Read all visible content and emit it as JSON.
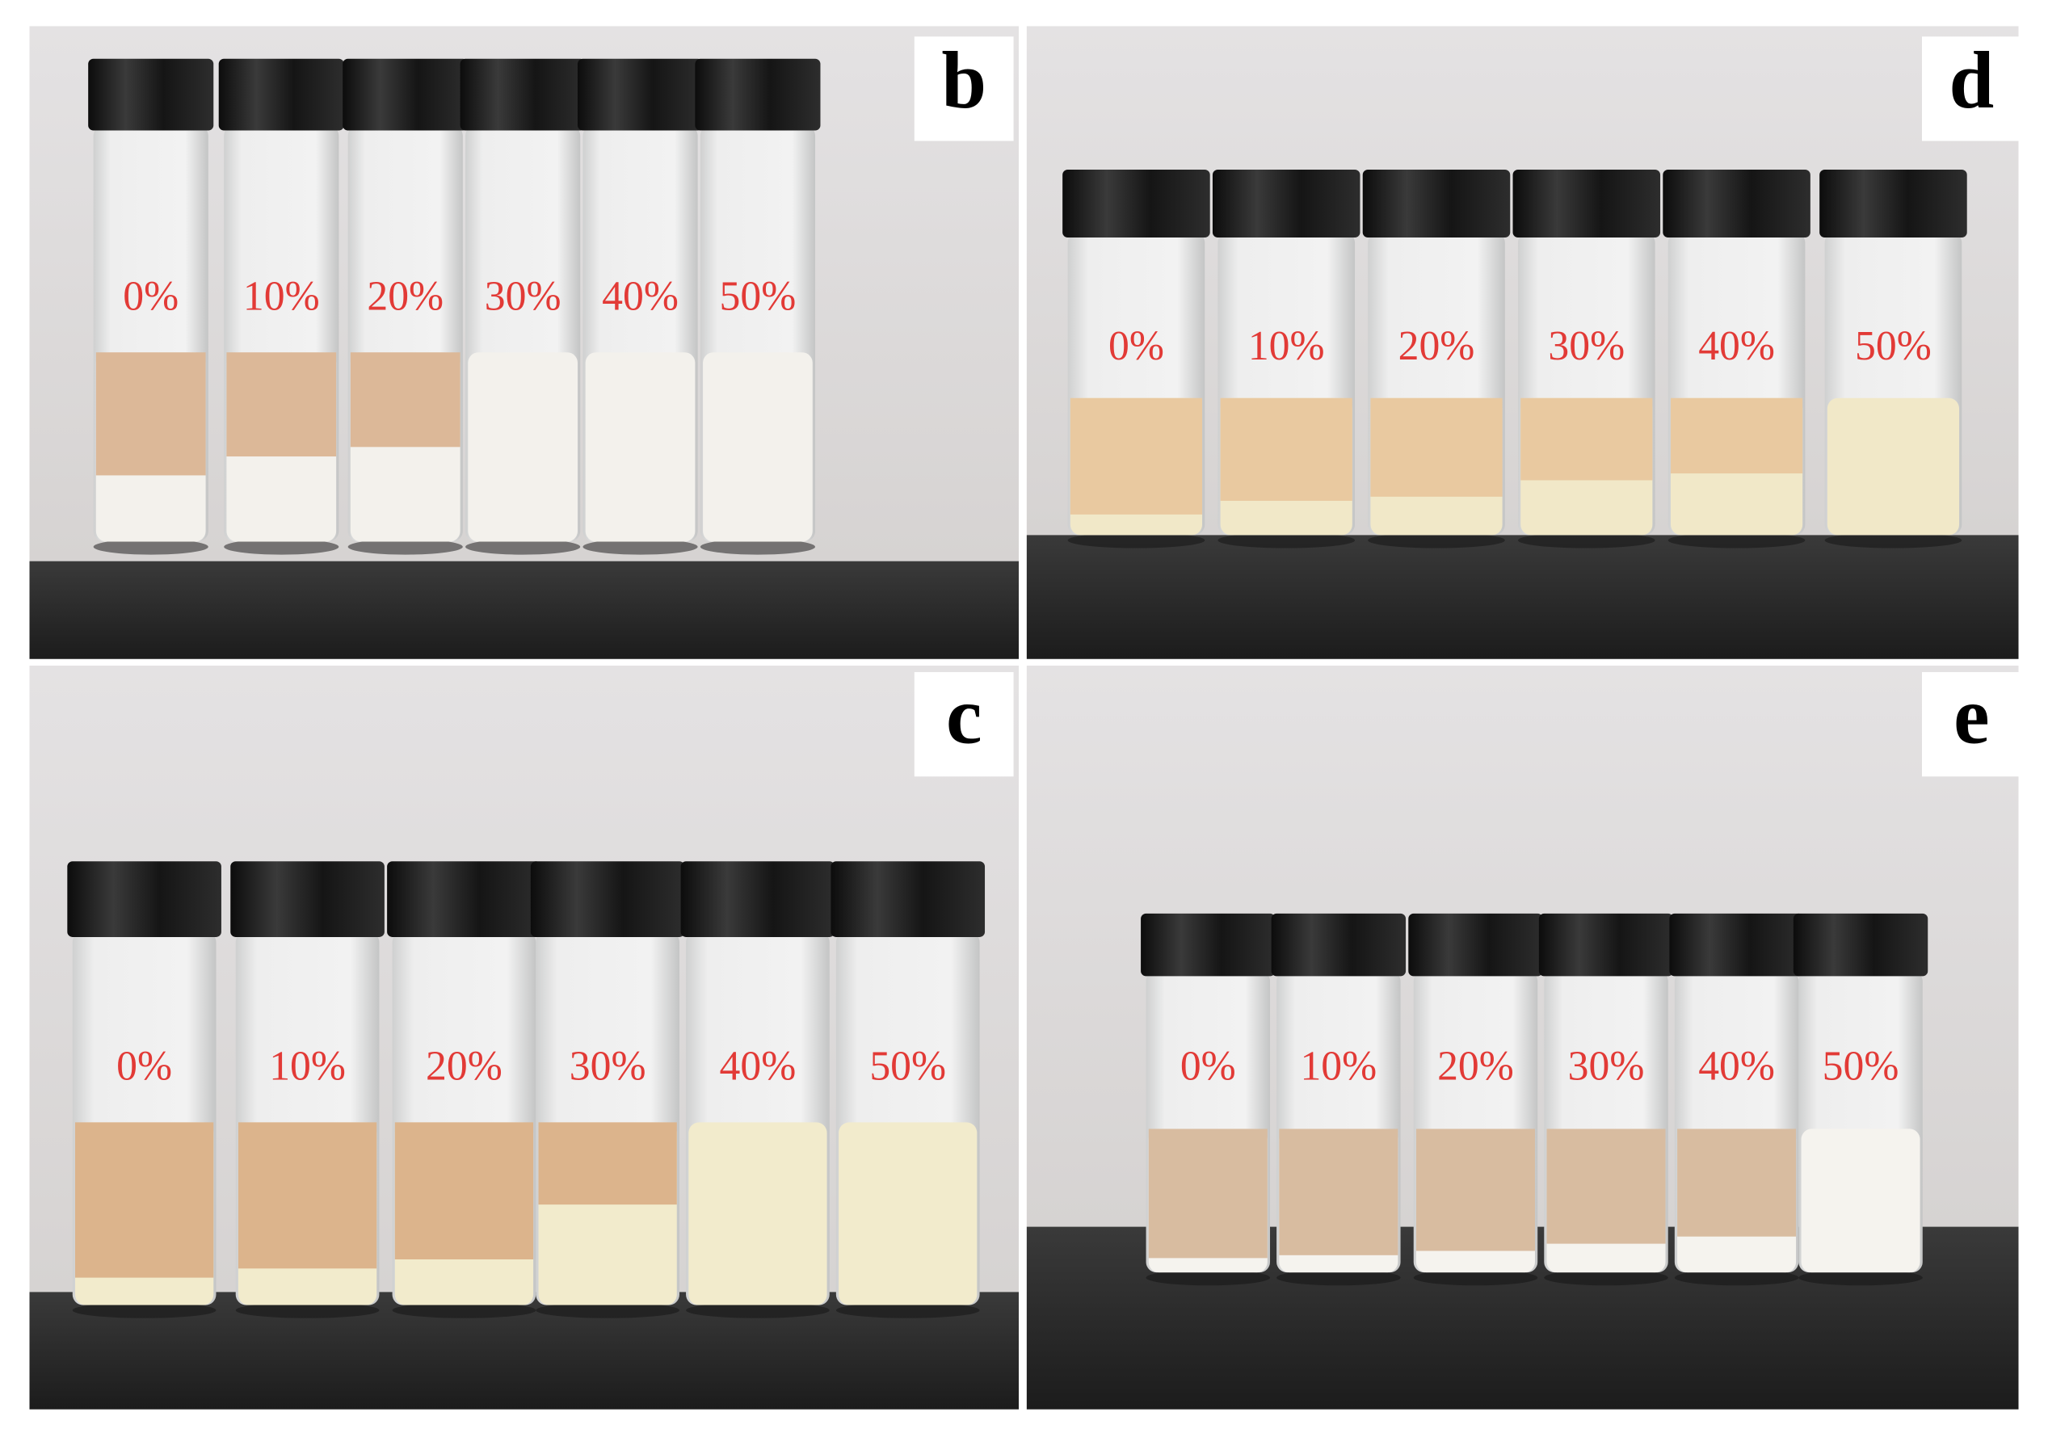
{
  "panels": [
    {
      "label": "b",
      "vials": [
        "0%",
        "10%",
        "20%",
        "30%",
        "40%",
        "50%"
      ]
    },
    {
      "label": "d",
      "vials": [
        "0%",
        "10%",
        "20%",
        "30%",
        "40%",
        "50%"
      ]
    },
    {
      "label": "c",
      "vials": [
        "0%",
        "10%",
        "20%",
        "30%",
        "40%",
        "50%"
      ]
    },
    {
      "label": "e",
      "vials": [
        "0%",
        "10%",
        "20%",
        "30%",
        "40%",
        "50%"
      ]
    }
  ]
}
